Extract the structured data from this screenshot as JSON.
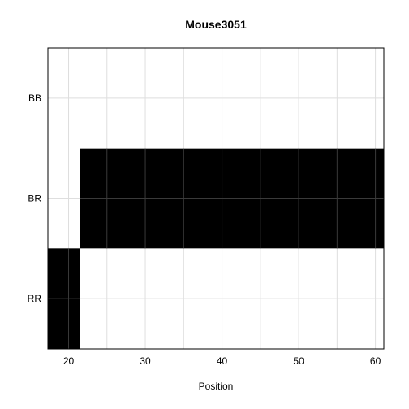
{
  "chart_data": {
    "type": "heatmap",
    "title": "Mouse3051",
    "xlabel": "Position",
    "ylabel": "",
    "xlim": [
      17.3,
      61.1
    ],
    "x_ticks": [
      20,
      30,
      40,
      50,
      60
    ],
    "x_tick_labels": [
      "20",
      "30",
      "40",
      "50",
      "60"
    ],
    "x_minor_gridlines": [
      25,
      35,
      45,
      55
    ],
    "categories": [
      "BB",
      "BR",
      "RR"
    ],
    "grid": true,
    "fill_color": "#000000",
    "segments": [
      {
        "genotype": "RR",
        "start": 17.3,
        "end": 21.5
      },
      {
        "genotype": "BR",
        "start": 21.5,
        "end": 61.1
      }
    ]
  }
}
